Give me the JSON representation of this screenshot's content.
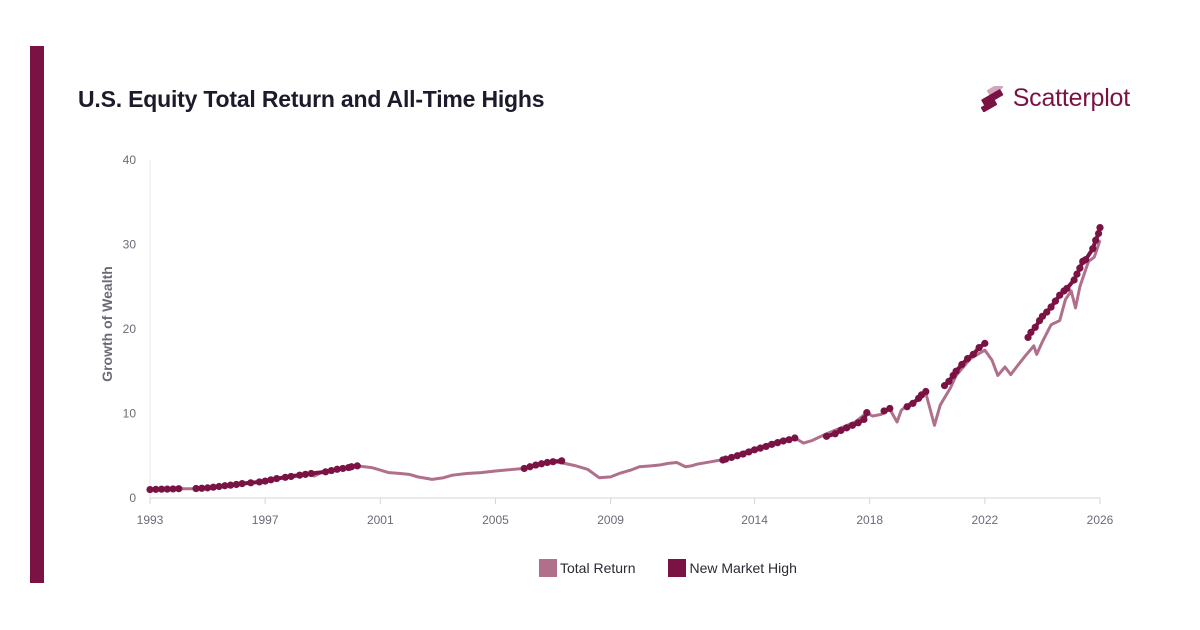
{
  "colors": {
    "accent": "#7a1343",
    "total_return": "#b0708c",
    "new_high": "#7a1343",
    "title": "#1b1b2b",
    "grid": "#e9e9ee",
    "axis": "#d5d5dc"
  },
  "brand": {
    "name": "Scatterplot",
    "icon": "scatterplot-logo-icon"
  },
  "chart_data": {
    "type": "line",
    "title": "U.S. Equity Total Return and All-Time Highs",
    "ylabel": "Growth of Wealth",
    "xlabel": "",
    "xlim": [
      1993,
      2026
    ],
    "ylim": [
      0,
      40
    ],
    "x_ticks": [
      1993,
      1997,
      2001,
      2005,
      2009,
      2014,
      2018,
      2022,
      2026
    ],
    "y_ticks": [
      0,
      10,
      20,
      30,
      40
    ],
    "grid": false,
    "legend_position": "bottom",
    "legend": [
      "Total Return",
      "New Market High"
    ],
    "series": [
      {
        "name": "Total Return",
        "x": [
          1993.0,
          1993.5,
          1994.0,
          1994.5,
          1995.0,
          1995.5,
          1996.0,
          1996.5,
          1997.0,
          1997.5,
          1998.0,
          1998.5,
          1998.7,
          1999.0,
          1999.5,
          2000.0,
          2000.2,
          2000.7,
          2001.0,
          2001.3,
          2001.7,
          2002.0,
          2002.3,
          2002.8,
          2003.2,
          2003.5,
          2004.0,
          2004.5,
          2005.0,
          2005.5,
          2006.0,
          2006.5,
          2007.0,
          2007.4,
          2007.8,
          2008.2,
          2008.6,
          2009.0,
          2009.3,
          2009.7,
          2010.0,
          2010.4,
          2010.7,
          2011.0,
          2011.3,
          2011.6,
          2011.8,
          2012.0,
          2012.5,
          2013.0,
          2013.5,
          2014.0,
          2014.5,
          2015.0,
          2015.4,
          2015.7,
          2016.0,
          2016.5,
          2017.0,
          2017.5,
          2017.9,
          2018.1,
          2018.4,
          2018.7,
          2018.95,
          2019.1,
          2019.4,
          2019.7,
          2019.95,
          2020.1,
          2020.25,
          2020.45,
          2020.8,
          2021.0,
          2021.5,
          2022.0,
          2022.25,
          2022.45,
          2022.7,
          2022.9,
          2023.1,
          2023.4,
          2023.7,
          2023.8,
          2024.0,
          2024.3,
          2024.6,
          2024.8,
          2025.0,
          2025.15,
          2025.3,
          2025.4,
          2025.6,
          2025.8,
          2026.0
        ],
        "values": [
          1.0,
          1.05,
          1.1,
          1.1,
          1.2,
          1.45,
          1.6,
          1.8,
          2.0,
          2.4,
          2.7,
          2.9,
          2.6,
          3.1,
          3.4,
          3.7,
          3.8,
          3.6,
          3.3,
          3.0,
          2.9,
          2.8,
          2.5,
          2.2,
          2.4,
          2.7,
          2.9,
          3.0,
          3.2,
          3.35,
          3.5,
          3.9,
          4.3,
          4.1,
          3.8,
          3.4,
          2.4,
          2.5,
          2.9,
          3.3,
          3.7,
          3.8,
          3.9,
          4.1,
          4.2,
          3.7,
          3.8,
          4.0,
          4.3,
          4.6,
          5.3,
          5.8,
          6.4,
          6.9,
          7.1,
          6.5,
          6.8,
          7.6,
          8.3,
          9.0,
          10.1,
          9.7,
          9.9,
          10.5,
          9.0,
          10.4,
          11.2,
          11.6,
          12.4,
          10.5,
          8.6,
          11.0,
          13.0,
          14.5,
          16.5,
          17.5,
          16.3,
          14.5,
          15.5,
          14.6,
          15.5,
          16.8,
          18.0,
          17.0,
          18.5,
          20.5,
          21.0,
          23.5,
          24.5,
          22.5,
          25.0,
          26.0,
          28.0,
          28.5,
          30.5
        ]
      },
      {
        "name": "New Market High",
        "x": [
          1993.0,
          1993.2,
          1993.4,
          1993.6,
          1993.8,
          1994.0,
          1994.6,
          1994.8,
          1995.0,
          1995.2,
          1995.4,
          1995.6,
          1995.8,
          1996.0,
          1996.2,
          1996.5,
          1996.8,
          1997.0,
          1997.2,
          1997.4,
          1997.7,
          1997.9,
          1998.2,
          1998.4,
          1998.6,
          1999.1,
          1999.3,
          1999.5,
          1999.7,
          1999.9,
          2000.0,
          2000.2,
          2006.0,
          2006.2,
          2006.4,
          2006.6,
          2006.8,
          2007.0,
          2007.3,
          2012.9,
          2013.0,
          2013.2,
          2013.4,
          2013.6,
          2013.8,
          2014.0,
          2014.2,
          2014.4,
          2014.6,
          2014.8,
          2015.0,
          2015.2,
          2015.4,
          2016.5,
          2016.8,
          2017.0,
          2017.2,
          2017.4,
          2017.6,
          2017.8,
          2017.9,
          2018.5,
          2018.7,
          2019.3,
          2019.5,
          2019.7,
          2019.8,
          2019.95,
          2020.6,
          2020.75,
          2020.9,
          2021.0,
          2021.2,
          2021.4,
          2021.6,
          2021.8,
          2022.0,
          2023.5,
          2023.6,
          2023.75,
          2023.9,
          2024.0,
          2024.15,
          2024.3,
          2024.45,
          2024.6,
          2024.75,
          2024.85,
          2025.1,
          2025.2,
          2025.3,
          2025.4,
          2025.5,
          2025.75,
          2025.85,
          2025.95,
          2026.0
        ],
        "values": [
          1.0,
          1.02,
          1.04,
          1.05,
          1.07,
          1.1,
          1.12,
          1.15,
          1.2,
          1.28,
          1.36,
          1.45,
          1.52,
          1.6,
          1.7,
          1.8,
          1.9,
          2.0,
          2.15,
          2.3,
          2.45,
          2.55,
          2.7,
          2.8,
          2.9,
          3.1,
          3.25,
          3.4,
          3.5,
          3.6,
          3.7,
          3.8,
          3.5,
          3.7,
          3.9,
          4.05,
          4.2,
          4.3,
          4.4,
          4.5,
          4.6,
          4.8,
          5.0,
          5.2,
          5.45,
          5.7,
          5.9,
          6.1,
          6.35,
          6.55,
          6.75,
          6.9,
          7.1,
          7.3,
          7.6,
          8.0,
          8.3,
          8.6,
          8.9,
          9.3,
          10.1,
          10.3,
          10.6,
          10.8,
          11.2,
          11.8,
          12.2,
          12.6,
          13.3,
          13.8,
          14.5,
          15.0,
          15.8,
          16.5,
          17.0,
          17.8,
          18.3,
          19.0,
          19.6,
          20.2,
          21.0,
          21.5,
          22.0,
          22.6,
          23.3,
          24.0,
          24.5,
          24.8,
          25.8,
          26.5,
          27.2,
          28.0,
          28.2,
          29.5,
          30.5,
          31.3,
          32.0
        ]
      }
    ]
  }
}
